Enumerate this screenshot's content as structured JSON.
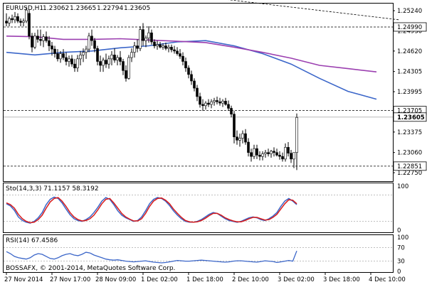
{
  "chart_data": [
    {
      "type": "candlestick",
      "symbol_label": "EURUSD,H1",
      "ohlc_label": [
        "1.23062",
        "1.23665",
        "1.22794",
        "1.23605"
      ],
      "ylim": [
        1.2262,
        1.2535
      ],
      "yticks": [
        1.2524,
        1.2493,
        1.2462,
        1.24305,
        1.23995,
        1.23685,
        1.23375,
        1.2306,
        1.2275
      ],
      "x_labels": [
        "27 Nov 2014",
        "27 Nov 17:00",
        "28 Nov 09:00",
        "1 Dec 02:00",
        "1 Dec 18:00",
        "2 Dec 10:00",
        "3 Dec 02:00",
        "3 Dec 18:00",
        "4 Dec 10:00"
      ],
      "x_label_index": [
        0,
        16,
        32,
        48,
        64,
        80,
        96,
        112,
        128
      ],
      "price_levels": [
        {
          "label": "1.24990",
          "value": 1.2499,
          "color": "#000000"
        },
        {
          "label": "1.23705",
          "value": 1.23705,
          "color": "#000000"
        },
        {
          "label": "1.22851",
          "value": 1.22851,
          "color": "#000000"
        }
      ],
      "current_price": {
        "label": "1.23605",
        "value": 1.23605
      },
      "trendline": {
        "from": [
          70,
          1.2545
        ],
        "to": [
          138,
          1.251
        ]
      },
      "moving_averages": [
        {
          "color": "#3b66c9",
          "points": [
            [
              0,
              1.246
            ],
            [
              10,
              1.2456
            ],
            [
              20,
              1.246
            ],
            [
              30,
              1.2462
            ],
            [
              40,
              1.2467
            ],
            [
              50,
              1.247
            ],
            [
              60,
              1.2476
            ],
            [
              70,
              1.2478
            ],
            [
              80,
              1.247
            ],
            [
              90,
              1.2458
            ],
            [
              100,
              1.2442
            ],
            [
              110,
              1.242
            ],
            [
              120,
              1.24
            ],
            [
              130,
              1.2388
            ]
          ]
        },
        {
          "color": "#9b3fb0",
          "points": [
            [
              0,
              1.2485
            ],
            [
              10,
              1.2484
            ],
            [
              20,
              1.248
            ],
            [
              30,
              1.248
            ],
            [
              40,
              1.2481
            ],
            [
              50,
              1.2479
            ],
            [
              60,
              1.2477
            ],
            [
              70,
              1.2475
            ],
            [
              80,
              1.2468
            ],
            [
              90,
              1.246
            ],
            [
              100,
              1.2451
            ],
            [
              110,
              1.244
            ],
            [
              120,
              1.2435
            ],
            [
              130,
              1.243
            ]
          ]
        }
      ],
      "candles": [
        [
          1.2508,
          1.252,
          1.25,
          1.2505
        ],
        [
          1.2505,
          1.2515,
          1.25,
          1.2512
        ],
        [
          1.2512,
          1.2518,
          1.2505,
          1.251
        ],
        [
          1.251,
          1.2522,
          1.2505,
          1.2515
        ],
        [
          1.2515,
          1.252,
          1.2505,
          1.2508
        ],
        [
          1.2508,
          1.2512,
          1.25,
          1.2506
        ],
        [
          1.2506,
          1.2512,
          1.25,
          1.2508
        ],
        [
          1.2508,
          1.253,
          1.2505,
          1.2525
        ],
        [
          1.252,
          1.2525,
          1.248,
          1.2485
        ],
        [
          1.2485,
          1.249,
          1.246,
          1.2468
        ],
        [
          1.2468,
          1.249,
          1.2465,
          1.2485
        ],
        [
          1.2485,
          1.2495,
          1.2475,
          1.248
        ],
        [
          1.248,
          1.2495,
          1.247,
          1.2478
        ],
        [
          1.2478,
          1.2488,
          1.2468,
          1.2484
        ],
        [
          1.2484,
          1.2492,
          1.2475,
          1.2478
        ],
        [
          1.2478,
          1.2485,
          1.2462,
          1.247
        ],
        [
          1.247,
          1.2476,
          1.2455,
          1.2465
        ],
        [
          1.2465,
          1.247,
          1.2452,
          1.2458
        ],
        [
          1.2458,
          1.2465,
          1.2446,
          1.245
        ],
        [
          1.245,
          1.2462,
          1.2444,
          1.2458
        ],
        [
          1.2458,
          1.2465,
          1.2448,
          1.2452
        ],
        [
          1.2452,
          1.246,
          1.244,
          1.2446
        ],
        [
          1.2446,
          1.2455,
          1.2438,
          1.245
        ],
        [
          1.245,
          1.2456,
          1.2438,
          1.2442
        ],
        [
          1.2442,
          1.245,
          1.243,
          1.2436
        ],
        [
          1.2436,
          1.2456,
          1.243,
          1.245
        ],
        [
          1.245,
          1.2462,
          1.244,
          1.2456
        ],
        [
          1.2456,
          1.2466,
          1.2445,
          1.246
        ],
        [
          1.246,
          1.247,
          1.245,
          1.2465
        ],
        [
          1.2465,
          1.249,
          1.246,
          1.2485
        ],
        [
          1.2485,
          1.2495,
          1.247,
          1.2478
        ],
        [
          1.2478,
          1.2482,
          1.246,
          1.2466
        ],
        [
          1.2466,
          1.247,
          1.244,
          1.2446
        ],
        [
          1.2446,
          1.2455,
          1.243,
          1.244
        ],
        [
          1.244,
          1.2452,
          1.243,
          1.2448
        ],
        [
          1.2448,
          1.2458,
          1.2436,
          1.2442
        ],
        [
          1.2442,
          1.2455,
          1.2435,
          1.245
        ],
        [
          1.245,
          1.2462,
          1.244,
          1.2456
        ],
        [
          1.2456,
          1.2466,
          1.2444,
          1.2448
        ],
        [
          1.2448,
          1.2456,
          1.244,
          1.2452
        ],
        [
          1.2452,
          1.2462,
          1.244,
          1.2446
        ],
        [
          1.2446,
          1.245,
          1.2425,
          1.2432
        ],
        [
          1.2432,
          1.244,
          1.2415,
          1.242
        ],
        [
          1.242,
          1.2456,
          1.2418,
          1.2452
        ],
        [
          1.2452,
          1.2466,
          1.2445,
          1.246
        ],
        [
          1.246,
          1.2476,
          1.2452,
          1.247
        ],
        [
          1.247,
          1.248,
          1.246,
          1.2466
        ],
        [
          1.2466,
          1.25,
          1.2462,
          1.2495
        ],
        [
          1.2495,
          1.2505,
          1.247,
          1.2478
        ],
        [
          1.2478,
          1.2486,
          1.2468,
          1.2482
        ],
        [
          1.2482,
          1.25,
          1.2475,
          1.249
        ],
        [
          1.249,
          1.2495,
          1.2472,
          1.2476
        ],
        [
          1.2476,
          1.248,
          1.2466,
          1.247
        ],
        [
          1.247,
          1.2478,
          1.2464,
          1.2472
        ],
        [
          1.2472,
          1.2476,
          1.2466,
          1.2468
        ],
        [
          1.2468,
          1.2474,
          1.2464,
          1.247
        ],
        [
          1.247,
          1.2475,
          1.2463,
          1.2466
        ],
        [
          1.2466,
          1.2472,
          1.246,
          1.2468
        ],
        [
          1.2468,
          1.2472,
          1.246,
          1.2464
        ],
        [
          1.2464,
          1.247,
          1.2458,
          1.2462
        ],
        [
          1.2462,
          1.2468,
          1.2455,
          1.2458
        ],
        [
          1.2458,
          1.2465,
          1.245,
          1.2454
        ],
        [
          1.2454,
          1.246,
          1.244,
          1.2446
        ],
        [
          1.2446,
          1.2452,
          1.243,
          1.2436
        ],
        [
          1.2436,
          1.244,
          1.242,
          1.2426
        ],
        [
          1.2426,
          1.2432,
          1.241,
          1.2416
        ],
        [
          1.2416,
          1.242,
          1.24,
          1.2405
        ],
        [
          1.2405,
          1.241,
          1.2385,
          1.2392
        ],
        [
          1.2392,
          1.2398,
          1.2375,
          1.238
        ],
        [
          1.238,
          1.2388,
          1.237,
          1.2378
        ],
        [
          1.2378,
          1.2385,
          1.2372,
          1.2382
        ],
        [
          1.2382,
          1.2388,
          1.2376,
          1.238
        ],
        [
          1.238,
          1.2388,
          1.2374,
          1.2384
        ],
        [
          1.2384,
          1.239,
          1.2378,
          1.2386
        ],
        [
          1.2386,
          1.2392,
          1.238,
          1.2384
        ],
        [
          1.2384,
          1.239,
          1.2378,
          1.2382
        ],
        [
          1.2382,
          1.2388,
          1.2376,
          1.2385
        ],
        [
          1.2385,
          1.239,
          1.2378,
          1.238
        ],
        [
          1.238,
          1.2386,
          1.237,
          1.2374
        ],
        [
          1.2374,
          1.2378,
          1.236,
          1.2365
        ],
        [
          1.2365,
          1.237,
          1.232,
          1.233
        ],
        [
          1.233,
          1.234,
          1.2318,
          1.2325
        ],
        [
          1.2325,
          1.2335,
          1.2315,
          1.2328
        ],
        [
          1.2328,
          1.234,
          1.232,
          1.2335
        ],
        [
          1.2335,
          1.2342,
          1.2318,
          1.2322
        ],
        [
          1.2322,
          1.2328,
          1.23,
          1.2306
        ],
        [
          1.2306,
          1.2312,
          1.2292,
          1.23
        ],
        [
          1.23,
          1.2318,
          1.2296,
          1.2312
        ],
        [
          1.2312,
          1.2318,
          1.2296,
          1.2302
        ],
        [
          1.2302,
          1.2308,
          1.2294,
          1.23
        ],
        [
          1.23,
          1.2308,
          1.2294,
          1.2304
        ],
        [
          1.2304,
          1.231,
          1.2298,
          1.2306
        ],
        [
          1.2306,
          1.2312,
          1.23,
          1.2304
        ],
        [
          1.2304,
          1.231,
          1.2298,
          1.2308
        ],
        [
          1.2308,
          1.2314,
          1.23,
          1.2306
        ],
        [
          1.2306,
          1.2312,
          1.23,
          1.2302
        ],
        [
          1.2302,
          1.2308,
          1.2295,
          1.23
        ],
        [
          1.23,
          1.2306,
          1.2292,
          1.2296
        ],
        [
          1.2296,
          1.232,
          1.2292,
          1.2314
        ],
        [
          1.2314,
          1.2322,
          1.23,
          1.2305
        ],
        [
          1.2305,
          1.231,
          1.229,
          1.2296
        ],
        [
          1.2296,
          1.2306,
          1.2282,
          1.2306
        ],
        [
          1.2306,
          1.2366,
          1.2279,
          1.236
        ]
      ]
    },
    {
      "type": "line",
      "label": "Sto(14,3,3) 71.1157 58.3192",
      "ylim": [
        0,
        100
      ],
      "yticks": [
        100,
        0
      ],
      "levels": [
        80,
        20
      ],
      "series": [
        {
          "color": "#3b66c9",
          "values": [
            60,
            55,
            45,
            30,
            22,
            18,
            16,
            20,
            28,
            40,
            58,
            70,
            75,
            72,
            62,
            48,
            35,
            26,
            22,
            20,
            24,
            30,
            40,
            52,
            66,
            74,
            70,
            58,
            44,
            34,
            28,
            24,
            20,
            22,
            30,
            44,
            60,
            70,
            74,
            72,
            66,
            56,
            44,
            34,
            26,
            20,
            18,
            18,
            20,
            24,
            30,
            36,
            40,
            38,
            32,
            26,
            22,
            20,
            18,
            20,
            24,
            28,
            30,
            28,
            24,
            22,
            26,
            32,
            40,
            54,
            66,
            72,
            66,
            58
          ]
        },
        {
          "color": "#d81b1b",
          "values": [
            62,
            58,
            50,
            36,
            26,
            20,
            17,
            18,
            24,
            34,
            50,
            64,
            72,
            74,
            66,
            54,
            40,
            30,
            24,
            21,
            22,
            26,
            34,
            46,
            60,
            70,
            72,
            62,
            50,
            38,
            30,
            25,
            21,
            21,
            26,
            38,
            54,
            66,
            72,
            73,
            68,
            60,
            48,
            38,
            29,
            22,
            19,
            18,
            19,
            22,
            27,
            33,
            38,
            38,
            34,
            28,
            24,
            21,
            19,
            19,
            22,
            26,
            29,
            29,
            26,
            23,
            24,
            29,
            36,
            48,
            60,
            69,
            68,
            60
          ]
        }
      ]
    },
    {
      "type": "line",
      "label": "RSI(14) 67.4586",
      "ylim": [
        0,
        100
      ],
      "yticks": [
        100,
        70,
        30,
        0
      ],
      "levels": [
        70,
        30
      ],
      "series": [
        {
          "color": "#3b66c9",
          "values": [
            58,
            52,
            44,
            40,
            38,
            36,
            40,
            48,
            52,
            50,
            44,
            38,
            36,
            40,
            46,
            50,
            52,
            48,
            46,
            50,
            56,
            54,
            48,
            44,
            40,
            36,
            34,
            33,
            34,
            32,
            30,
            29,
            28,
            29,
            30,
            31,
            29,
            27,
            26,
            25,
            26,
            28,
            30,
            32,
            31,
            30,
            30,
            31,
            32,
            33,
            32,
            31,
            30,
            29,
            28,
            27,
            28,
            30,
            31,
            31,
            30,
            29,
            28,
            27,
            29,
            31,
            30,
            29,
            26,
            28,
            30,
            32,
            30,
            60
          ]
        }
      ]
    }
  ],
  "copyright": "BOSSAFX, © 2001-2014, MetaQuotes Software Corp."
}
